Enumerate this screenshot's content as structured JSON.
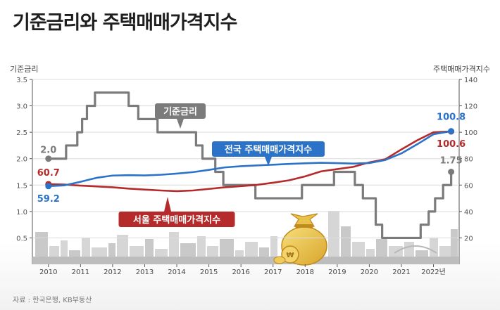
{
  "title": "기준금리와 주택매매가격지수",
  "source": "자료 : 한국은행, KB부동산",
  "chart_data": {
    "type": "line",
    "left_axis": {
      "label": "기준금리",
      "ticks": [
        "0.5",
        "1.0",
        "1.5",
        "2.0",
        "2.5",
        "3.0",
        "3.5"
      ],
      "ylim": [
        0,
        3.5
      ]
    },
    "right_axis": {
      "label": "주택매매가격지수",
      "ticks": [
        "20",
        "40",
        "60",
        "80",
        "100",
        "120",
        "140"
      ],
      "ylim": [
        0,
        140
      ]
    },
    "x_ticks": [
      "2010",
      "2011",
      "2012",
      "2013",
      "2014",
      "2015",
      "2016",
      "2017",
      "2018",
      "2019",
      "2020",
      "2021",
      "2022년"
    ],
    "x_tick_years": [
      2010,
      2011,
      2012,
      2013,
      2014,
      2015,
      2016,
      2017,
      2018,
      2019,
      2020,
      2021,
      2022
    ],
    "xlim": [
      2009.5,
      2022.8
    ],
    "grid": true,
    "series": [
      {
        "name": "기준금리",
        "axis": "left",
        "color": "#7b7b7b",
        "step": true,
        "points": [
          [
            2010.0,
            2.0
          ],
          [
            2010.55,
            2.25
          ],
          [
            2010.9,
            2.5
          ],
          [
            2011.05,
            2.75
          ],
          [
            2011.2,
            3.0
          ],
          [
            2011.45,
            3.25
          ],
          [
            2012.5,
            3.0
          ],
          [
            2012.8,
            2.75
          ],
          [
            2013.4,
            2.5
          ],
          [
            2014.6,
            2.25
          ],
          [
            2014.8,
            2.0
          ],
          [
            2015.2,
            1.75
          ],
          [
            2015.45,
            1.5
          ],
          [
            2016.45,
            1.25
          ],
          [
            2017.9,
            1.5
          ],
          [
            2018.9,
            1.75
          ],
          [
            2019.55,
            1.5
          ],
          [
            2019.8,
            1.25
          ],
          [
            2020.2,
            0.75
          ],
          [
            2020.4,
            0.5
          ],
          [
            2021.6,
            0.75
          ],
          [
            2021.85,
            1.0
          ],
          [
            2022.05,
            1.25
          ],
          [
            2022.3,
            1.5
          ],
          [
            2022.55,
            1.75
          ]
        ],
        "point_labels": [
          {
            "text": "2.0",
            "x": 2010.0,
            "y": 2.0
          },
          {
            "text": "1.75",
            "x": 2022.55,
            "y": 1.75
          }
        ],
        "callout": "기준금리"
      },
      {
        "name": "전국 주택매매가격지수",
        "axis": "right",
        "color": "#2a73c9",
        "points": [
          [
            2010.0,
            59.2
          ],
          [
            2010.5,
            59.8
          ],
          [
            2011.0,
            62.5
          ],
          [
            2011.5,
            65.5
          ],
          [
            2012.0,
            67.2
          ],
          [
            2012.5,
            67.5
          ],
          [
            2013.0,
            67.3
          ],
          [
            2013.5,
            67.8
          ],
          [
            2014.0,
            68.7
          ],
          [
            2014.5,
            69.8
          ],
          [
            2015.0,
            71.5
          ],
          [
            2015.5,
            73.4
          ],
          [
            2016.0,
            74.3
          ],
          [
            2016.5,
            74.9
          ],
          [
            2017.0,
            75.4
          ],
          [
            2017.5,
            76.0
          ],
          [
            2018.0,
            76.5
          ],
          [
            2018.5,
            76.9
          ],
          [
            2019.0,
            76.6
          ],
          [
            2019.5,
            76.3
          ],
          [
            2020.0,
            76.7
          ],
          [
            2020.5,
            79.0
          ],
          [
            2021.0,
            84.0
          ],
          [
            2021.5,
            91.0
          ],
          [
            2022.0,
            98.5
          ],
          [
            2022.55,
            100.8
          ]
        ],
        "point_labels": [
          {
            "text": "59.2",
            "x": 2010.0,
            "y": 59.2
          },
          {
            "text": "100.8",
            "x": 2022.55,
            "y": 100.8
          }
        ],
        "callout": "전국 주택매매가격지수"
      },
      {
        "name": "서울 주택매매가격지수",
        "axis": "right",
        "color": "#b52a2a",
        "points": [
          [
            2010.0,
            60.7
          ],
          [
            2010.5,
            60.4
          ],
          [
            2011.0,
            59.6
          ],
          [
            2011.5,
            59.0
          ],
          [
            2012.0,
            58.3
          ],
          [
            2012.5,
            57.3
          ],
          [
            2013.0,
            56.6
          ],
          [
            2013.5,
            55.9
          ],
          [
            2014.0,
            55.4
          ],
          [
            2014.5,
            55.9
          ],
          [
            2015.0,
            57.1
          ],
          [
            2015.5,
            58.3
          ],
          [
            2016.0,
            59.2
          ],
          [
            2016.5,
            60.2
          ],
          [
            2017.0,
            61.8
          ],
          [
            2017.5,
            63.6
          ],
          [
            2018.0,
            66.6
          ],
          [
            2018.5,
            70.4
          ],
          [
            2019.0,
            72.1
          ],
          [
            2019.5,
            73.8
          ],
          [
            2020.0,
            77.2
          ],
          [
            2020.5,
            79.6
          ],
          [
            2021.0,
            87.0
          ],
          [
            2021.5,
            94.0
          ],
          [
            2022.0,
            100.0
          ],
          [
            2022.55,
            100.6
          ]
        ],
        "point_labels": [
          {
            "text": "60.7",
            "x": 2010.0,
            "y": 60.7
          },
          {
            "text": "100.6",
            "x": 2022.55,
            "y": 100.6
          }
        ],
        "callout": "서울 주택매매가격지수"
      }
    ]
  }
}
